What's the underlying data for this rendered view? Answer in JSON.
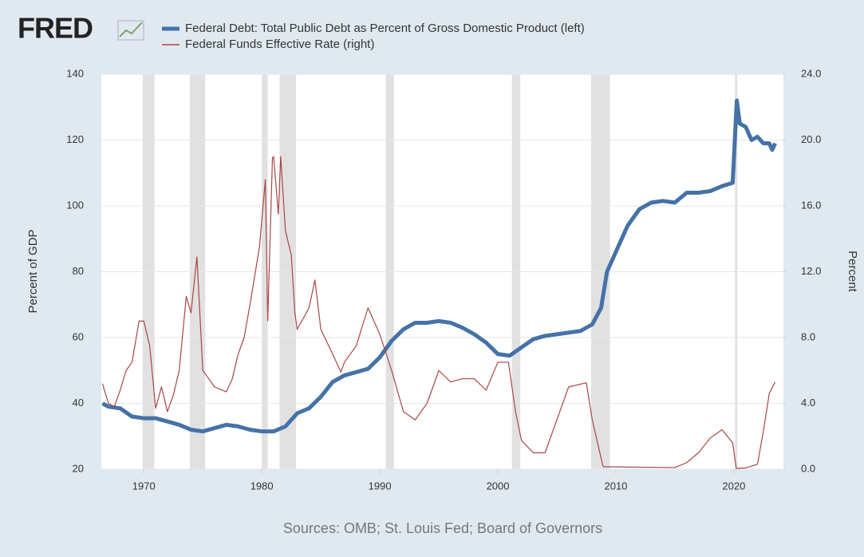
{
  "chart_data": {
    "type": "line",
    "brand": "FRED",
    "source": "Sources: OMB; St. Louis Fed; Board of Governors",
    "ylabel": "Percent of GDP",
    "y2label": "Percent",
    "xlim": [
      1966.4,
      2024.2
    ],
    "xticks": [
      1970,
      1980,
      1990,
      2000,
      2010,
      2020
    ],
    "ylim": [
      20,
      140
    ],
    "yticks": [
      20,
      40,
      60,
      80,
      100,
      120,
      140
    ],
    "y2lim": [
      0,
      24
    ],
    "y2ticks": [
      {
        "value": 0,
        "label": "0.0"
      },
      {
        "value": 4,
        "label": "4.0"
      },
      {
        "value": 8,
        "label": "8.0"
      },
      {
        "value": 12,
        "label": "12.0"
      },
      {
        "value": 16,
        "label": "16.0"
      },
      {
        "value": 20,
        "label": "20.0"
      },
      {
        "value": 24,
        "label": "24.0"
      }
    ],
    "grid": true,
    "recessions": [
      [
        1969.9,
        1970.9
      ],
      [
        1973.9,
        1975.2
      ],
      [
        1980.0,
        1980.5
      ],
      [
        1981.5,
        1982.9
      ],
      [
        1990.5,
        1991.2
      ],
      [
        2001.2,
        2001.9
      ],
      [
        2007.9,
        2009.5
      ],
      [
        2020.1,
        2020.3
      ]
    ],
    "series": [
      {
        "name": "Federal Debt: Total Public Debt as Percent of Gross Domestic Product (left)",
        "color": "#4572a7",
        "x": [
          1966.5,
          1967,
          1968,
          1969,
          1970,
          1971,
          1972,
          1973,
          1974,
          1975,
          1976,
          1977,
          1978,
          1979,
          1980,
          1981,
          1982,
          1983,
          1984,
          1985,
          1986,
          1987,
          1988,
          1989,
          1990,
          1991,
          1992,
          1993,
          1994,
          1995,
          1996,
          1997,
          1998,
          1999,
          2000,
          2001,
          2002,
          2003,
          2004,
          2005,
          2006,
          2007,
          2008,
          2008.75,
          2009.25,
          2010,
          2011,
          2012,
          2013,
          2014,
          2015,
          2016,
          2017,
          2018,
          2019,
          2019.9,
          2020.25,
          2020.5,
          2021,
          2021.5,
          2022,
          2022.5,
          2023,
          2023.25,
          2023.5
        ],
        "values": [
          40,
          39,
          38.5,
          36,
          35.5,
          35.5,
          34.5,
          33.5,
          32,
          31.5,
          32.5,
          33.5,
          33,
          32,
          31.5,
          31.5,
          33,
          37,
          38.5,
          42,
          46.5,
          48.5,
          49.5,
          50.5,
          54,
          59,
          62.5,
          64.5,
          64.5,
          65,
          64.5,
          63,
          61,
          58.5,
          55,
          54.5,
          57,
          59.5,
          60.5,
          61,
          61.5,
          62,
          64,
          69,
          80,
          86,
          94,
          99,
          101,
          101.5,
          101,
          104,
          104,
          104.5,
          106,
          107,
          132,
          125,
          124,
          120,
          121,
          119,
          119,
          117,
          119
        ]
      },
      {
        "name": "Federal Funds Effective Rate (right)",
        "color": "#aa4643",
        "axis": "y2",
        "x": [
          1966.5,
          1967,
          1967.5,
          1968,
          1968.5,
          1969,
          1969.6,
          1970,
          1970.5,
          1971,
          1971.5,
          1972,
          1972.5,
          1973,
          1973.6,
          1974,
          1974.5,
          1975,
          1975.5,
          1976,
          1977,
          1977.5,
          1978,
          1978.5,
          1979,
          1979.8,
          1980.3,
          1980.5,
          1980.9,
          1981,
          1981.4,
          1981.6,
          1982,
          1982.5,
          1982.8,
          1983,
          1984,
          1984.5,
          1985,
          1986,
          1986.7,
          1987,
          1988,
          1989,
          1990,
          1991,
          1992,
          1993,
          1994,
          1995,
          1996,
          1997,
          1998,
          1999,
          2000,
          2000.9,
          2001.5,
          2002,
          2003,
          2004,
          2005,
          2006,
          2007.5,
          2008,
          2008.9,
          2009,
          2015,
          2016,
          2017,
          2018,
          2019,
          2019.9,
          2020.2,
          2021,
          2022,
          2022.5,
          2023,
          2023.5
        ],
        "values": [
          5.2,
          4.0,
          3.8,
          4.8,
          6.0,
          6.5,
          9.0,
          9.0,
          7.5,
          3.7,
          5.0,
          3.5,
          4.5,
          6.0,
          10.5,
          9.5,
          12.9,
          6.0,
          5.5,
          5.0,
          4.7,
          5.5,
          7.0,
          8.0,
          10.0,
          13.5,
          17.6,
          9.0,
          18.9,
          19.0,
          15.5,
          19.0,
          14.5,
          13.0,
          9.5,
          8.5,
          9.8,
          11.5,
          8.5,
          7.0,
          5.9,
          6.5,
          7.5,
          9.8,
          8.2,
          6.0,
          3.5,
          3.0,
          4.0,
          6.0,
          5.3,
          5.5,
          5.5,
          4.8,
          6.5,
          6.5,
          3.5,
          1.75,
          1.0,
          1.0,
          3.0,
          5.0,
          5.25,
          3.0,
          0.2,
          0.15,
          0.1,
          0.4,
          1.0,
          1.9,
          2.4,
          1.6,
          0.05,
          0.08,
          0.3,
          2.3,
          4.6,
          5.3
        ]
      }
    ]
  }
}
